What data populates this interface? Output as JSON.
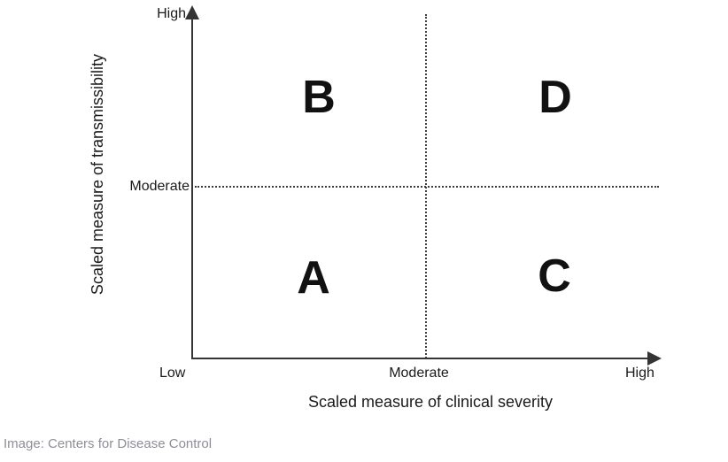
{
  "chart_data": {
    "type": "quadrant",
    "title": "",
    "xlabel": "Scaled measure of clinical severity",
    "ylabel": "Scaled measure of transmissibility",
    "x_tick_labels": [
      "Low",
      "Moderate",
      "High"
    ],
    "y_tick_labels": [
      "Moderate",
      "High"
    ],
    "x_divider_at": "Moderate",
    "y_divider_at": "Moderate",
    "quadrants": [
      {
        "label": "A",
        "position": "bottom-left"
      },
      {
        "label": "B",
        "position": "top-left"
      },
      {
        "label": "C",
        "position": "bottom-right"
      },
      {
        "label": "D",
        "position": "top-right"
      }
    ],
    "grid": false,
    "legend": false,
    "axis_style": "arrows pointing up (y) and right (x), dotted divider lines"
  },
  "caption": "Image: Centers for Disease Control",
  "colors": {
    "axis": "#343434",
    "label_text": "#1a1a1a",
    "caption_text": "#8e8e97",
    "background": "#ffffff"
  }
}
